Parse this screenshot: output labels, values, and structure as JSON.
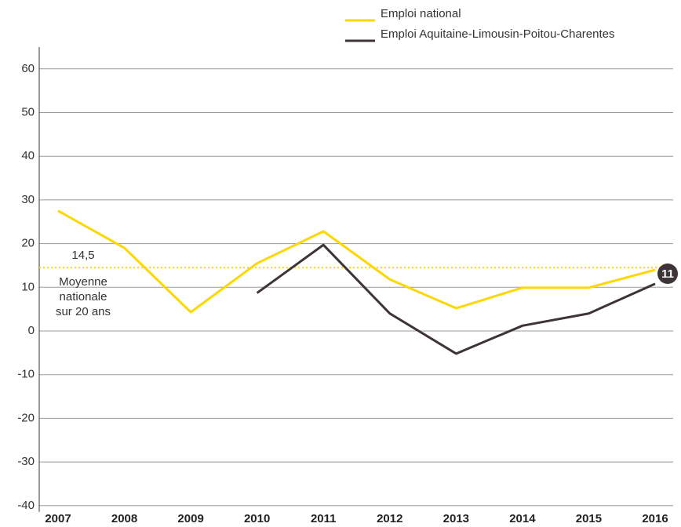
{
  "chart_data": {
    "type": "line",
    "categories": [
      "2007",
      "2008",
      "2009",
      "2010",
      "2011",
      "2012",
      "2013",
      "2014",
      "2015",
      "2016"
    ],
    "series": [
      {
        "name": "Emploi national",
        "color": "#ffd700",
        "values": [
          27.5,
          19,
          4.3,
          15.5,
          22.8,
          11.8,
          5.2,
          9.9,
          9.9,
          14
        ]
      },
      {
        "name": "Emploi Aquitaine-Limousin-Poitou-Charentes",
        "color": "#3e3335",
        "values": [
          null,
          null,
          null,
          8.7,
          19.7,
          4,
          -5.2,
          1.2,
          4,
          10.8
        ]
      }
    ],
    "ylim": [
      -40,
      65
    ],
    "yticks": [
      -40,
      -30,
      -20,
      -10,
      0,
      10,
      20,
      30,
      40,
      50,
      60
    ],
    "grid": true,
    "legend": "top-right",
    "average": {
      "value": 14.5,
      "label": "14,5",
      "color": "#ffd700"
    },
    "average_note": [
      "Moyenne",
      "nationale",
      "sur 20 ans"
    ],
    "badge": "11"
  }
}
